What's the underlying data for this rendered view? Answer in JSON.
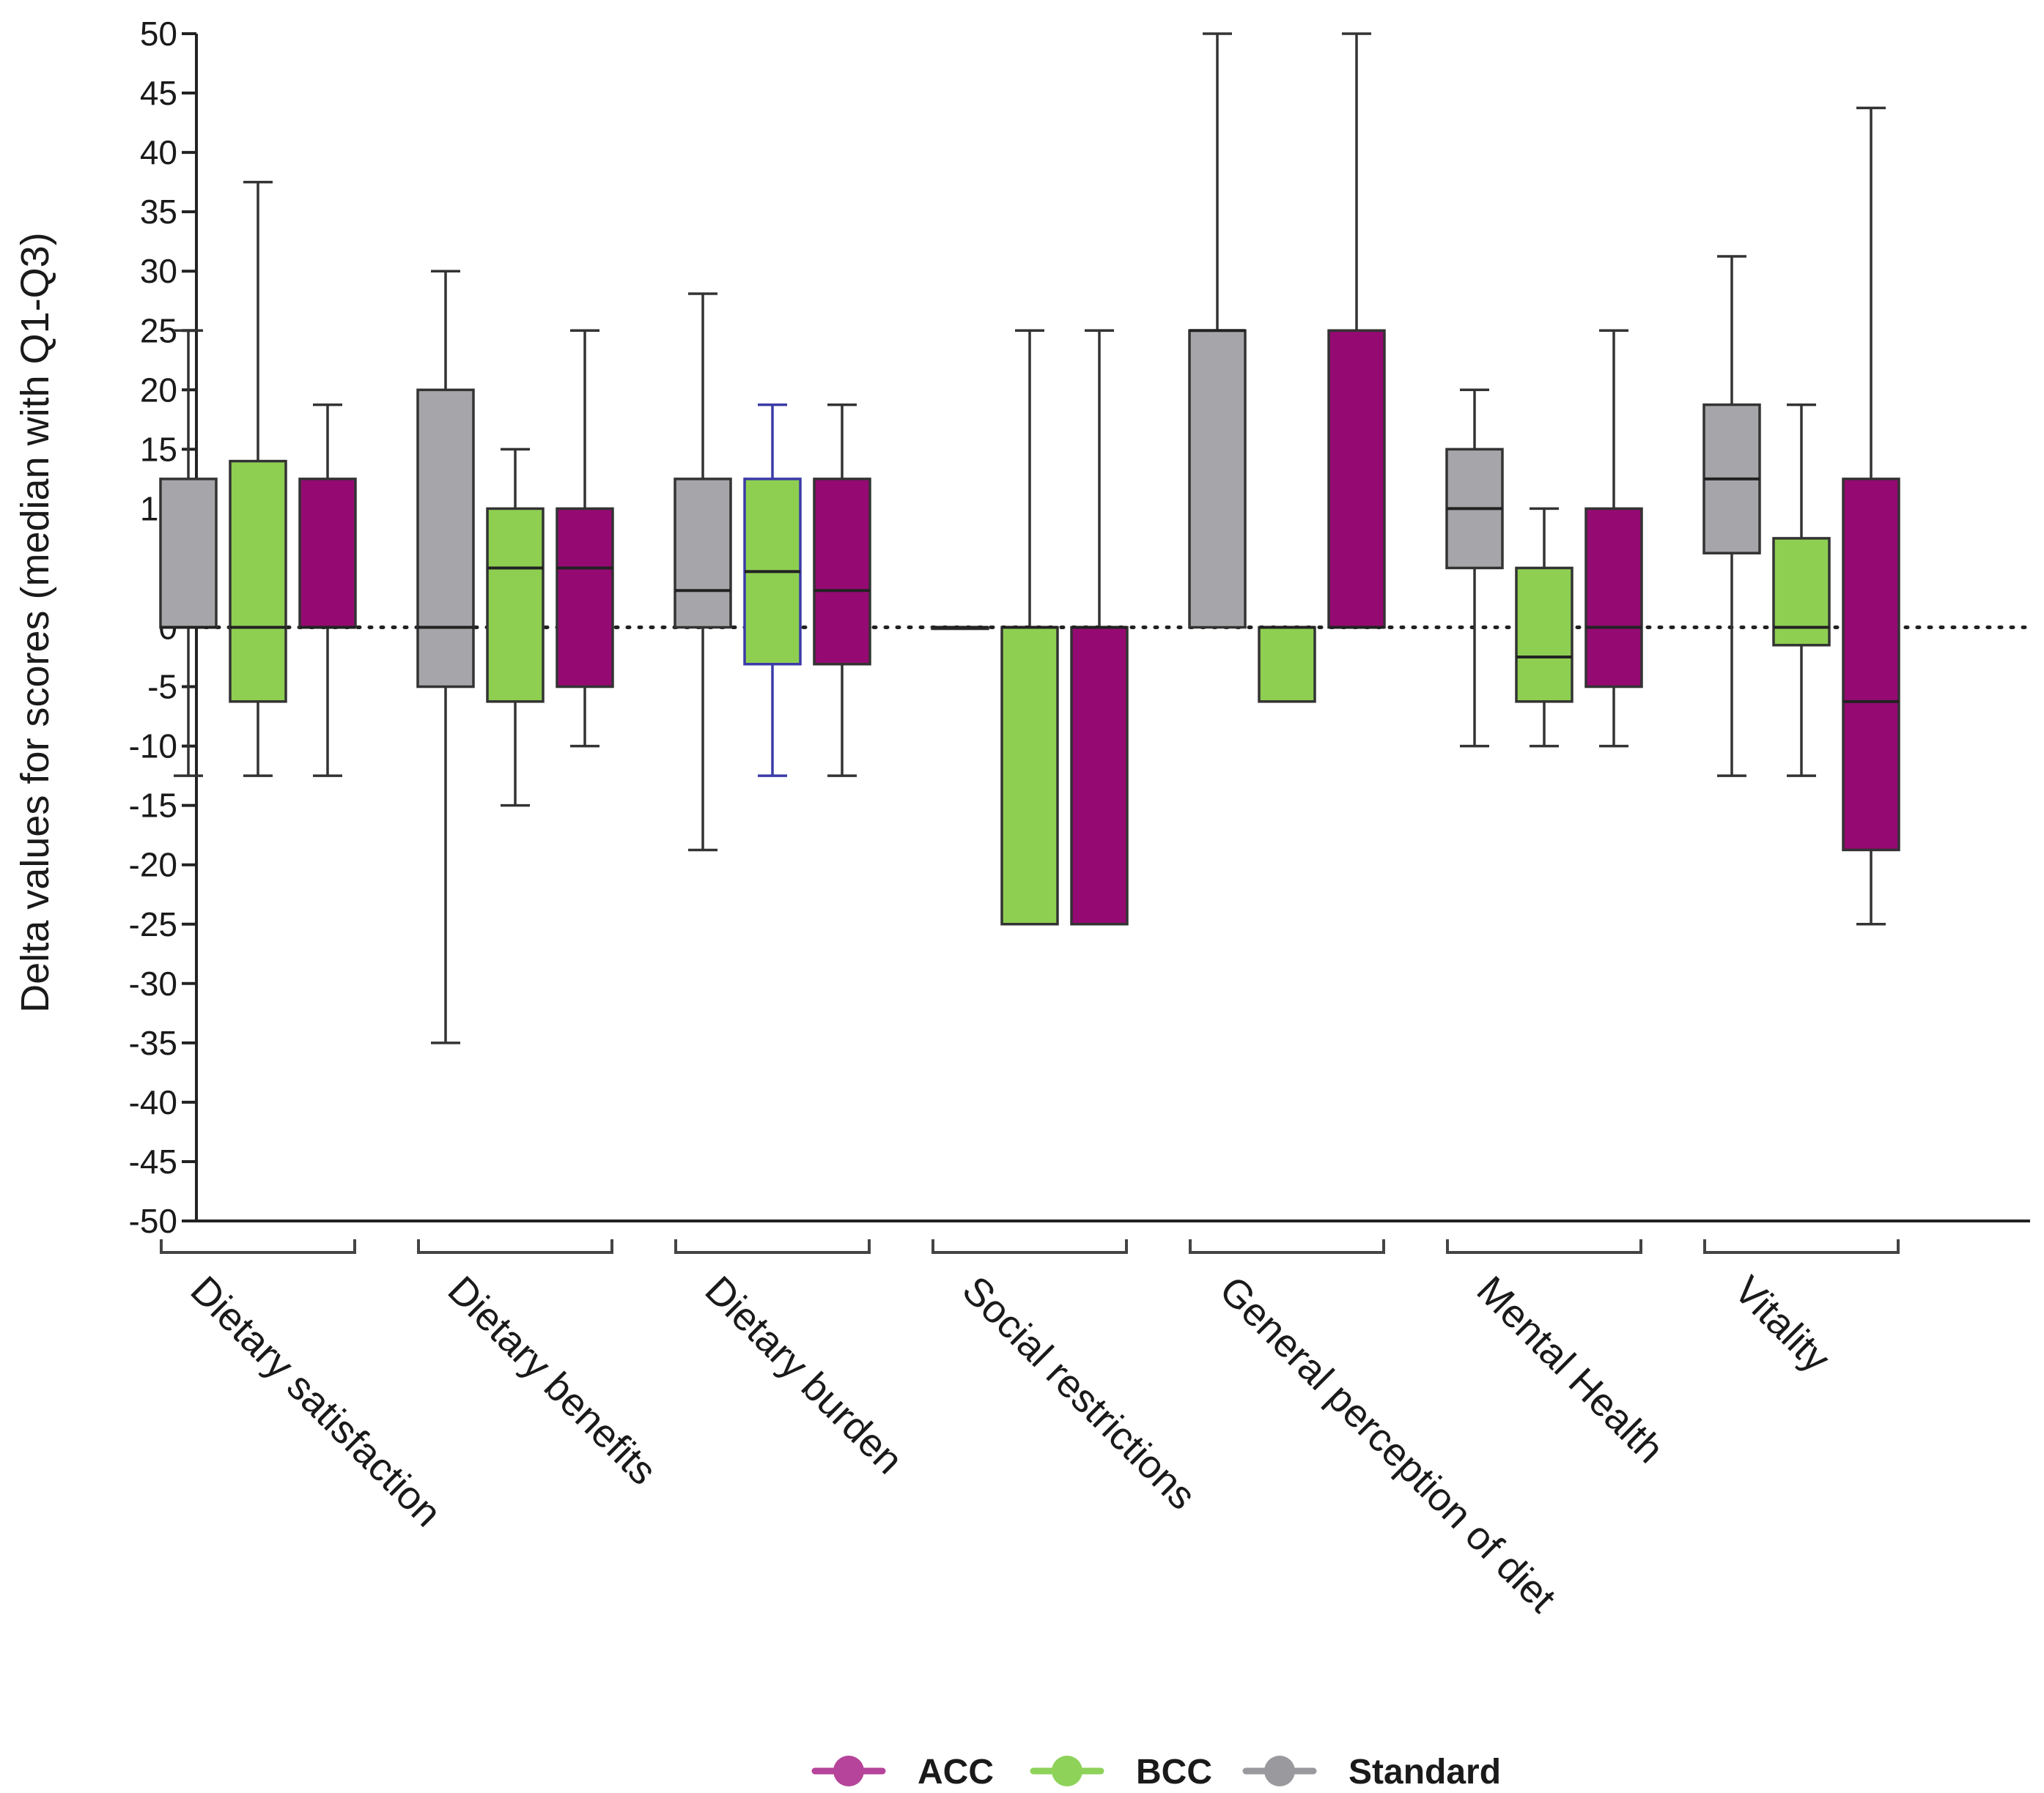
{
  "chart_data": {
    "type": "boxplot",
    "ylabel": "Delta values for scores (median with Q1-Q3)",
    "xlabel": "",
    "ylim": [
      -50,
      50
    ],
    "ytick_step": 5,
    "reference_line": 0,
    "series_order": [
      "Standard",
      "BCC",
      "ACC"
    ],
    "colors": {
      "Standard": "#a6a6aa",
      "BCC": "#8ecf52",
      "ACC": "#950a72"
    },
    "legend": [
      {
        "name": "ACC",
        "color": "#b5449a"
      },
      {
        "name": "BCC",
        "color": "#8ed25a"
      },
      {
        "name": "Standard",
        "color": "#9a9a9e"
      }
    ],
    "categories": [
      "Dietary satisfaction",
      "Dietary benefits",
      "Dietary burden",
      "Social restrictions",
      "General perception of diet",
      "Mental Health",
      "Vitality"
    ],
    "groups": [
      {
        "category": "Dietary satisfaction",
        "boxes": [
          {
            "series": "Standard",
            "min": -12.5,
            "q1": 0,
            "median": 0,
            "q3": 12.5,
            "max": 25
          },
          {
            "series": "BCC",
            "min": -12.5,
            "q1": -6.25,
            "median": 0,
            "q3": 14,
            "max": 37.5
          },
          {
            "series": "ACC",
            "min": -12.5,
            "q1": 0,
            "median": 0,
            "q3": 12.5,
            "max": 18.75
          }
        ]
      },
      {
        "category": "Dietary benefits",
        "boxes": [
          {
            "series": "Standard",
            "min": -35,
            "q1": -5,
            "median": 0,
            "q3": 20,
            "max": 30
          },
          {
            "series": "BCC",
            "min": -15,
            "q1": -6.25,
            "median": 5,
            "q3": 10,
            "max": 15
          },
          {
            "series": "ACC",
            "min": -10,
            "q1": -5,
            "median": 5,
            "q3": 10,
            "max": 25
          }
        ]
      },
      {
        "category": "Dietary burden",
        "boxes": [
          {
            "series": "Standard",
            "min": -18.75,
            "q1": 0,
            "median": 3.1,
            "q3": 12.5,
            "max": 28.1
          },
          {
            "series": "BCC",
            "min": -12.5,
            "q1": -3.1,
            "median": 4.7,
            "q3": 12.5,
            "max": 18.75
          },
          {
            "series": "ACC",
            "min": -12.5,
            "q1": -3.1,
            "median": 3.1,
            "q3": 12.5,
            "max": 18.75
          }
        ]
      },
      {
        "category": "Social restrictions",
        "boxes": [
          {
            "series": "Standard",
            "min": 0,
            "q1": 0,
            "median": 0,
            "q3": 0,
            "max": 0
          },
          {
            "series": "BCC",
            "min": -25,
            "q1": -25,
            "median": 0,
            "q3": 0,
            "max": 25
          },
          {
            "series": "ACC",
            "min": -25,
            "q1": -25,
            "median": 0,
            "q3": 0,
            "max": 25
          }
        ]
      },
      {
        "category": "General perception of diet",
        "boxes": [
          {
            "series": "Standard",
            "min": 0,
            "q1": 0,
            "median": 25,
            "q3": 25,
            "max": 50
          },
          {
            "series": "BCC",
            "min": -6.25,
            "q1": -6.25,
            "median": 0,
            "q3": 0,
            "max": 0
          },
          {
            "series": "ACC",
            "min": 0,
            "q1": 0,
            "median": 0,
            "q3": 25,
            "max": 50
          }
        ]
      },
      {
        "category": "Mental Health",
        "boxes": [
          {
            "series": "Standard",
            "min": -10,
            "q1": 5,
            "median": 10,
            "q3": 15,
            "max": 20
          },
          {
            "series": "BCC",
            "min": -10,
            "q1": -6.25,
            "median": -2.5,
            "q3": 5,
            "max": 10
          },
          {
            "series": "ACC",
            "min": -10,
            "q1": -5,
            "median": 0,
            "q3": 10,
            "max": 25
          }
        ]
      },
      {
        "category": "Vitality",
        "boxes": [
          {
            "series": "Standard",
            "min": -12.5,
            "q1": 6.25,
            "median": 12.5,
            "q3": 18.75,
            "max": 31.25
          },
          {
            "series": "BCC",
            "min": -12.5,
            "q1": -1.5,
            "median": 0,
            "q3": 7.5,
            "max": 18.75
          },
          {
            "series": "ACC",
            "min": -25,
            "q1": -18.75,
            "median": -6.25,
            "q3": 12.5,
            "max": 43.75
          }
        ]
      }
    ]
  }
}
